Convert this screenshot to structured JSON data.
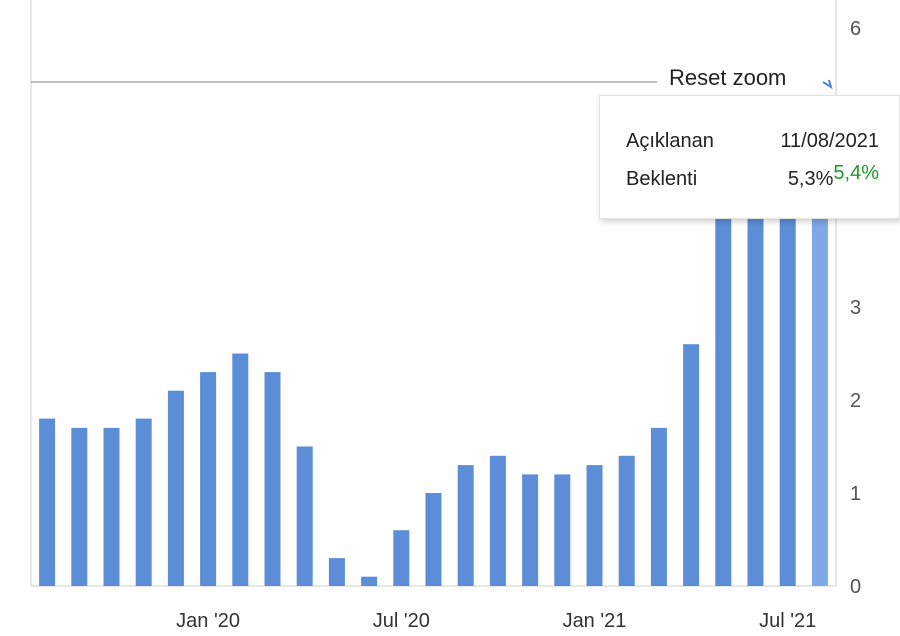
{
  "chart_data": {
    "type": "bar",
    "x": [
      "2019-08",
      "2019-09",
      "2019-10",
      "2019-11",
      "2019-12",
      "2020-01",
      "2020-02",
      "2020-03",
      "2020-04",
      "2020-05",
      "2020-06",
      "2020-07",
      "2020-08",
      "2020-09",
      "2020-10",
      "2020-11",
      "2020-12",
      "2021-01",
      "2021-02",
      "2021-03",
      "2021-04",
      "2021-05",
      "2021-06",
      "2021-07",
      "2021-08"
    ],
    "values": [
      1.8,
      1.7,
      1.7,
      1.8,
      2.1,
      2.3,
      2.5,
      2.3,
      1.5,
      0.3,
      0.1,
      0.6,
      1.0,
      1.3,
      1.4,
      1.2,
      1.2,
      1.3,
      1.4,
      1.7,
      2.6,
      5.0,
      5.0,
      5.0,
      5.0
    ],
    "x_tick_labels": [
      "Jan '20",
      "Jul '20",
      "Jan '21",
      "Jul '21"
    ],
    "x_tick_positions": [
      "2020-01",
      "2020-07",
      "2021-01",
      "2021-07"
    ],
    "ylim": [
      0,
      6
    ],
    "y_ticks": [
      0,
      1,
      2,
      3,
      4,
      5,
      6
    ],
    "y_tick_labels_visible": [
      "0",
      "1",
      "2",
      "3",
      "6"
    ],
    "y_axis_position": "right",
    "bar_color": "#5b8ed6",
    "highlight_color": "#7ea8e6",
    "grid": false,
    "title": "",
    "xlabel": "",
    "ylabel": ""
  },
  "controls": {
    "reset_zoom_label": "Reset zoom"
  },
  "tooltip": {
    "row1_label": "Açıklanan",
    "row1_value": "11/08/2021",
    "row2_label": "Beklenti",
    "row2_value": "5,3%",
    "row2_value_actual": "5,4%",
    "actual_color": "#1f9a2a"
  }
}
